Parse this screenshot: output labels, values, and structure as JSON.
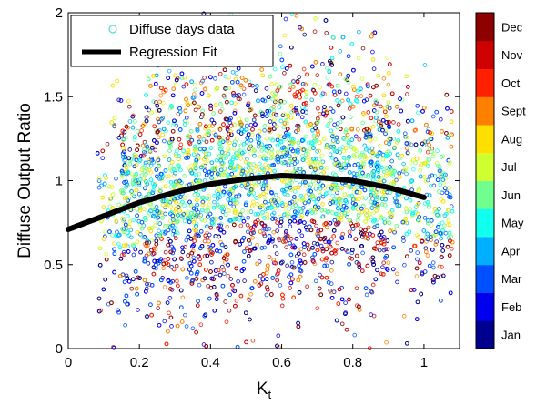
{
  "chart_data": {
    "type": "scatter",
    "xlabel": "K",
    "xlabel_subscript": "t",
    "ylabel": "Diffuse Output Ratio",
    "xlim": [
      0,
      1.1
    ],
    "ylim": [
      0,
      2
    ],
    "x_ticks": [
      "0",
      "0.2",
      "0.4",
      "0.6",
      "0.8",
      "1"
    ],
    "y_ticks": [
      "0",
      "0.5",
      "1",
      "1.5",
      "2"
    ],
    "grid": false,
    "legend": {
      "placement": "top-left",
      "entries": [
        "Diffuse days data",
        "Regression Fit"
      ]
    },
    "colorbar": {
      "labels": [
        "Jan",
        "Feb",
        "Mar",
        "Apr",
        "May",
        "Jun",
        "Jul",
        "Aug",
        "Sept",
        "Oct",
        "Nov",
        "Dec"
      ],
      "colors": [
        "#00008f",
        "#0000ef",
        "#0050ff",
        "#00afff",
        "#10ffef",
        "#70ff8f",
        "#cfff30",
        "#ffdf00",
        "#ff8000",
        "#ff2000",
        "#cf0000",
        "#8f0000"
      ]
    },
    "series": [
      {
        "name": "Diffuse days data",
        "style": "scatter-open-circles",
        "count": 6000
      },
      {
        "name": "Regression Fit",
        "style": "line",
        "x": [
          0,
          0.1,
          0.2,
          0.3,
          0.4,
          0.5,
          0.6,
          0.7,
          0.8,
          0.9,
          1.0
        ],
        "y": [
          0.71,
          0.79,
          0.87,
          0.93,
          0.98,
          1.01,
          1.03,
          1.02,
          1.0,
          0.96,
          0.9
        ]
      }
    ]
  }
}
